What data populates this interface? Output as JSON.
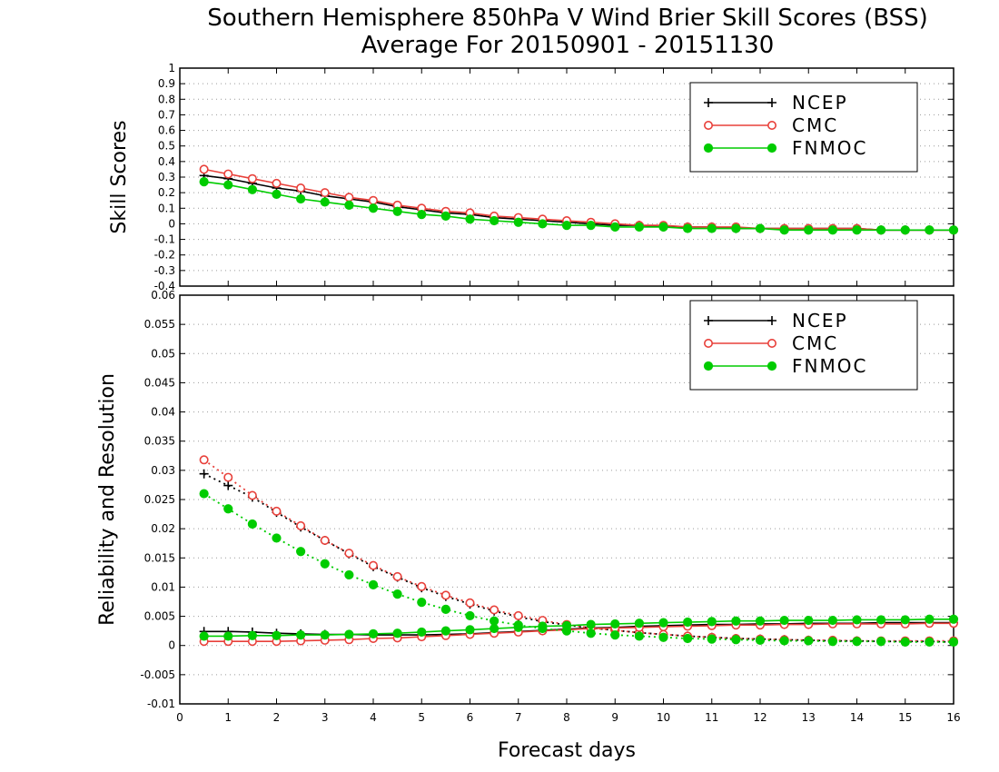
{
  "title_line1": "Southern Hemisphere 850hPa V Wind Brier Skill Scores (BSS)",
  "title_line2": "Average For 20150901 - 20151130",
  "colors": {
    "ncep": "#000000",
    "cmc": "#e8403a",
    "fnmoc": "#00cc00"
  },
  "chart_data": [
    {
      "type": "line",
      "ylabel": "Skill Scores",
      "xlabel": "",
      "xlim": [
        0,
        16
      ],
      "ylim": [
        -0.4,
        1
      ],
      "x_ticks": [
        0,
        1,
        2,
        3,
        4,
        5,
        6,
        7,
        8,
        9,
        10,
        11,
        12,
        13,
        14,
        15,
        16
      ],
      "y_ticks": [
        -0.4,
        -0.3,
        -0.2,
        -0.1,
        0,
        0.1,
        0.2,
        0.3,
        0.4,
        0.5,
        0.6,
        0.7,
        0.8,
        0.9,
        1
      ],
      "y_tick_labels": [
        "-0.4",
        "-0.3",
        "-0.2",
        "-0.1",
        "0",
        "0.1",
        "0.2",
        "0.3",
        "0.4",
        "0.5",
        "0.6",
        "0.7",
        "0.8",
        "0.9",
        "1"
      ],
      "grid": true,
      "legend_position": "top-right",
      "x": [
        0.5,
        1,
        1.5,
        2,
        2.5,
        3,
        3.5,
        4,
        4.5,
        5,
        5.5,
        6,
        6.5,
        7,
        7.5,
        8,
        8.5,
        9,
        9.5,
        10,
        10.5,
        11,
        11.5,
        12,
        12.5,
        13,
        13.5,
        14,
        14.5,
        15,
        15.5,
        16
      ],
      "series": [
        {
          "name": "NCEP",
          "key": "ncep",
          "marker": "plus",
          "style": "solid",
          "values": [
            0.31,
            0.29,
            0.26,
            0.23,
            0.21,
            0.18,
            0.16,
            0.14,
            0.11,
            0.09,
            0.07,
            0.06,
            0.04,
            0.03,
            0.02,
            0.01,
            0.0,
            -0.01,
            -0.01,
            -0.02,
            -0.02,
            -0.02,
            -0.03,
            -0.03,
            -0.03,
            -0.03,
            -0.03,
            -0.03,
            -0.04,
            -0.04,
            -0.04,
            -0.04
          ]
        },
        {
          "name": "CMC",
          "key": "cmc",
          "marker": "circle-open",
          "style": "solid",
          "values": [
            0.35,
            0.32,
            0.29,
            0.26,
            0.23,
            0.2,
            0.17,
            0.15,
            0.12,
            0.1,
            0.08,
            0.07,
            0.05,
            0.04,
            0.03,
            0.02,
            0.01,
            0.0,
            -0.01,
            -0.01,
            -0.02,
            -0.02,
            -0.02,
            -0.03,
            -0.03,
            -0.03,
            -0.03,
            -0.03,
            -0.04,
            -0.04,
            -0.04,
            -0.04
          ]
        },
        {
          "name": "FNMOC",
          "key": "fnmoc",
          "marker": "circle-filled",
          "style": "solid",
          "values": [
            0.27,
            0.25,
            0.22,
            0.19,
            0.16,
            0.14,
            0.12,
            0.1,
            0.08,
            0.06,
            0.05,
            0.03,
            0.02,
            0.01,
            0.0,
            -0.01,
            -0.01,
            -0.02,
            -0.02,
            -0.02,
            -0.03,
            -0.03,
            -0.03,
            -0.03,
            -0.04,
            -0.04,
            -0.04,
            -0.04,
            -0.04,
            -0.04,
            -0.04,
            -0.04
          ]
        }
      ]
    },
    {
      "type": "line",
      "ylabel": "Reliability and Resolution",
      "xlabel": "Forecast days",
      "xlim": [
        0,
        16
      ],
      "ylim": [
        -0.01,
        0.06
      ],
      "x_ticks": [
        0,
        1,
        2,
        3,
        4,
        5,
        6,
        7,
        8,
        9,
        10,
        11,
        12,
        13,
        14,
        15,
        16
      ],
      "y_ticks": [
        -0.01,
        -0.005,
        0,
        0.005,
        0.01,
        0.015,
        0.02,
        0.025,
        0.03,
        0.035,
        0.04,
        0.045,
        0.05,
        0.055,
        0.06
      ],
      "y_tick_labels": [
        "-0.01",
        "-0.005",
        "0",
        "0.005",
        "0.01",
        "0.015",
        "0.02",
        "0.025",
        "0.03",
        "0.035",
        "0.04",
        "0.045",
        "0.05",
        "0.055",
        "0.06"
      ],
      "grid": true,
      "legend_position": "top-right",
      "x": [
        0.5,
        1,
        1.5,
        2,
        2.5,
        3,
        3.5,
        4,
        4.5,
        5,
        5.5,
        6,
        6.5,
        7,
        7.5,
        8,
        8.5,
        9,
        9.5,
        10,
        10.5,
        11,
        11.5,
        12,
        12.5,
        13,
        13.5,
        14,
        14.5,
        15,
        15.5,
        16
      ],
      "series": [
        {
          "name": "NCEP",
          "key": "ncep",
          "marker": "plus",
          "style": "dotted",
          "values": [
            0.0294,
            0.0274,
            0.0254,
            0.0228,
            0.0203,
            0.018,
            0.0157,
            0.0135,
            0.0117,
            0.0099,
            0.0084,
            0.0071,
            0.0059,
            0.0049,
            0.0041,
            0.0035,
            0.003,
            0.0026,
            0.0022,
            0.0019,
            0.0016,
            0.0014,
            0.0012,
            0.0011,
            0.001,
            0.0009,
            0.0008,
            0.0008,
            0.0007,
            0.0007,
            0.0007,
            0.0006
          ]
        },
        {
          "key": "ncep",
          "marker": "plus",
          "style": "solid",
          "values": [
            0.0024,
            0.0024,
            0.0023,
            0.0021,
            0.002,
            0.0019,
            0.0019,
            0.0018,
            0.0018,
            0.0018,
            0.0019,
            0.002,
            0.0022,
            0.0024,
            0.0026,
            0.0028,
            0.003,
            0.0031,
            0.0033,
            0.0034,
            0.0035,
            0.0036,
            0.0036,
            0.0037,
            0.0037,
            0.0038,
            0.0038,
            0.0038,
            0.0039,
            0.0039,
            0.0039,
            0.0039
          ]
        },
        {
          "name": "CMC",
          "key": "cmc",
          "marker": "circle-open",
          "style": "dotted",
          "values": [
            0.0318,
            0.0288,
            0.0257,
            0.023,
            0.0205,
            0.018,
            0.0158,
            0.0137,
            0.0118,
            0.0101,
            0.0086,
            0.0073,
            0.0061,
            0.0051,
            0.0043,
            0.0036,
            0.003,
            0.0026,
            0.0022,
            0.0019,
            0.0016,
            0.0014,
            0.0012,
            0.0011,
            0.001,
            0.0009,
            0.0009,
            0.0008,
            0.0008,
            0.0008,
            0.0008,
            0.0008
          ]
        },
        {
          "key": "cmc",
          "marker": "circle-open",
          "style": "solid",
          "values": [
            0.0007,
            0.0007,
            0.0007,
            0.0007,
            0.0008,
            0.0009,
            0.001,
            0.0012,
            0.0013,
            0.0015,
            0.0017,
            0.0019,
            0.0021,
            0.0023,
            0.0025,
            0.0027,
            0.0029,
            0.003,
            0.0031,
            0.0032,
            0.0033,
            0.0034,
            0.0035,
            0.0035,
            0.0036,
            0.0036,
            0.0037,
            0.0037,
            0.0037,
            0.0037,
            0.0038,
            0.0038
          ]
        },
        {
          "name": "FNMOC",
          "key": "fnmoc",
          "marker": "circle-filled",
          "style": "dotted",
          "values": [
            0.026,
            0.0234,
            0.0208,
            0.0184,
            0.0161,
            0.014,
            0.0121,
            0.0104,
            0.0088,
            0.0074,
            0.0062,
            0.0051,
            0.0042,
            0.0035,
            0.0029,
            0.0025,
            0.0021,
            0.0018,
            0.0016,
            0.0014,
            0.0012,
            0.0011,
            0.001,
            0.0009,
            0.0008,
            0.0008,
            0.0007,
            0.0007,
            0.0007,
            0.0006,
            0.0006,
            0.0006
          ]
        },
        {
          "key": "fnmoc",
          "marker": "circle-filled",
          "style": "solid",
          "values": [
            0.0016,
            0.0016,
            0.0017,
            0.0017,
            0.0018,
            0.0018,
            0.0019,
            0.002,
            0.0021,
            0.0023,
            0.0025,
            0.0027,
            0.0029,
            0.0031,
            0.0033,
            0.0034,
            0.0036,
            0.0037,
            0.0038,
            0.0039,
            0.004,
            0.0041,
            0.0042,
            0.0042,
            0.0043,
            0.0043,
            0.0043,
            0.0044,
            0.0044,
            0.0044,
            0.0045,
            0.0045
          ]
        }
      ]
    }
  ]
}
